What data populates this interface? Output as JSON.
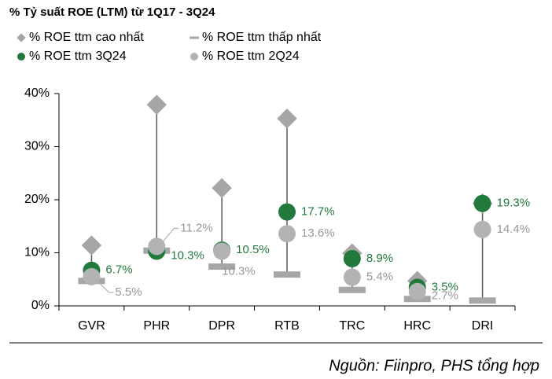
{
  "chart_data": {
    "type": "range-dot",
    "title": "% Tỷ suất ROE (LTM) từ 1Q17 - 3Q24",
    "source": "Nguồn: Fiinpro, PHS tổng hợp",
    "categories": [
      "GVR",
      "PHR",
      "DPR",
      "RTB",
      "TRC",
      "HRC",
      "DRI"
    ],
    "series": [
      {
        "name": "% ROE ttm cao nhất",
        "role": "high",
        "color": "#a6a6a6",
        "values": [
          11.4,
          37.9,
          22.2,
          35.3,
          9.9,
          4.7,
          19.3
        ]
      },
      {
        "name": "% ROE ttm thấp nhất",
        "role": "low",
        "color": "#a6a6a6",
        "values": [
          4.7,
          10.4,
          7.4,
          5.9,
          3.0,
          1.3,
          1.0
        ]
      },
      {
        "name": "% ROE ttm 3Q24",
        "role": "point",
        "color": "#217a3c",
        "values": [
          6.7,
          10.3,
          10.5,
          17.7,
          8.9,
          3.5,
          19.3
        ],
        "value_labels": [
          "6.7%",
          "10.3%",
          "10.5%",
          "17.7%",
          "8.9%",
          "3.5%",
          "19.3%"
        ]
      },
      {
        "name": "% ROE ttm 2Q24",
        "role": "point",
        "color": "#b3b3b3",
        "values": [
          5.5,
          11.2,
          10.3,
          13.6,
          5.4,
          2.7,
          14.4
        ],
        "value_labels": [
          "5.5%",
          "11.2%",
          "10.3%",
          "13.6%",
          "5.4%",
          "2.7%",
          "14.4%"
        ]
      }
    ],
    "ylim": [
      0,
      40
    ],
    "yticks": [
      {
        "value": 0,
        "label": "0%"
      },
      {
        "value": 10,
        "label": "10%"
      },
      {
        "value": 20,
        "label": "20%"
      },
      {
        "value": 30,
        "label": "30%"
      },
      {
        "value": 40,
        "label": "40%"
      }
    ]
  }
}
